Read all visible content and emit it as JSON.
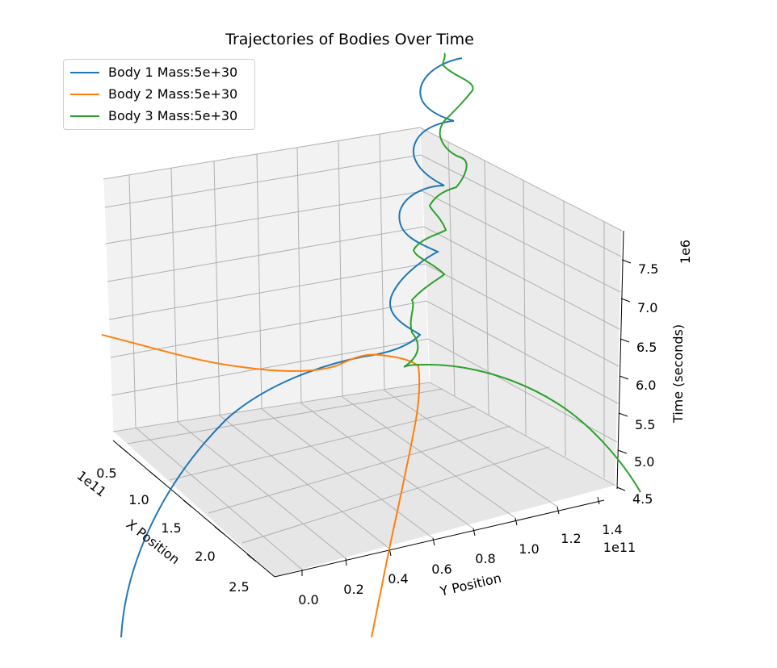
{
  "chart_data": {
    "type": "line",
    "title": "Trajectories of Bodies Over Time",
    "xlabel": "X Position",
    "ylabel": "Y Position",
    "zlabel": "Time (seconds)",
    "x_ticks": [
      "0.5",
      "1.0",
      "1.5",
      "2.0",
      "2.5"
    ],
    "x_offset_text": "1e11",
    "y_ticks": [
      "0.0",
      "0.2",
      "0.4",
      "0.6",
      "0.8",
      "1.0",
      "1.2",
      "1.4"
    ],
    "y_offset_text": "1e11",
    "z_ticks": [
      "4.5",
      "5.0",
      "5.5",
      "6.0",
      "6.5",
      "7.0",
      "7.5"
    ],
    "z_offset_text": "1e6",
    "grid": true,
    "legend_position": "top-left",
    "series": [
      {
        "name": "Body 1 Mass:5e+30",
        "color": "#1f77b4"
      },
      {
        "name": "Body 2 Mass:5e+30",
        "color": "#ff7f0e"
      },
      {
        "name": "Body 3 Mass:5e+30",
        "color": "#2ca02c"
      }
    ]
  }
}
